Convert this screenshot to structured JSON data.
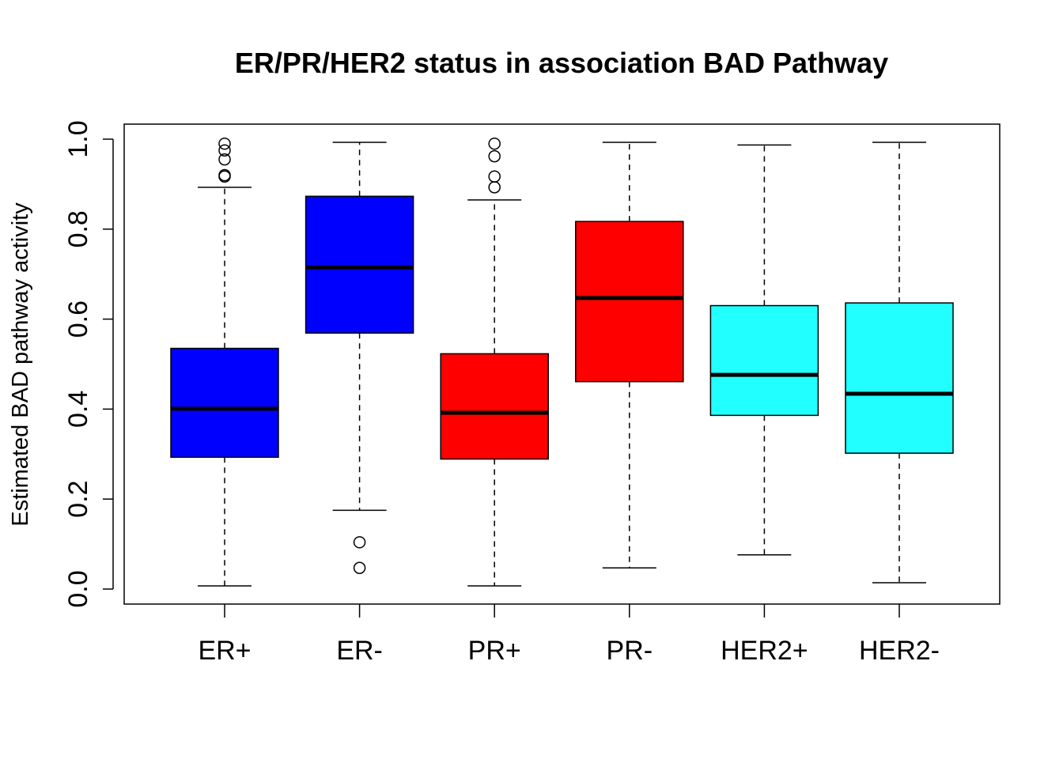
{
  "chart_data": {
    "type": "boxplot",
    "title": "ER/PR/HER2 status in association BAD Pathway",
    "xlabel": "",
    "ylabel": "Estimated BAD pathway activity",
    "ylim": [
      0.0,
      1.0
    ],
    "yticks": [
      "0.0",
      "0.2",
      "0.4",
      "0.6",
      "0.8",
      "1.0"
    ],
    "grid": false,
    "legend": "none",
    "categories": [
      "ER+",
      "ER-",
      "PR+",
      "PR-",
      "HER2+",
      "HER2-"
    ],
    "boxes": [
      {
        "category": "ER+",
        "color": "#0000ff",
        "whisker_low": 0.007,
        "q1": 0.293,
        "median": 0.401,
        "q3": 0.535,
        "whisker_high": 0.893,
        "outliers": [
          0.917,
          0.92,
          0.955,
          0.975,
          0.99
        ]
      },
      {
        "category": "ER-",
        "color": "#0000ff",
        "whisker_low": 0.175,
        "q1": 0.569,
        "median": 0.715,
        "q3": 0.873,
        "whisker_high": 0.993,
        "outliers": [
          0.047,
          0.104
        ]
      },
      {
        "category": "PR+",
        "color": "#ff0000",
        "whisker_low": 0.007,
        "q1": 0.289,
        "median": 0.392,
        "q3": 0.523,
        "whisker_high": 0.865,
        "outliers": [
          0.893,
          0.917,
          0.962,
          0.99
        ]
      },
      {
        "category": "PR-",
        "color": "#ff0000",
        "whisker_low": 0.047,
        "q1": 0.461,
        "median": 0.647,
        "q3": 0.817,
        "whisker_high": 0.993,
        "outliers": []
      },
      {
        "category": "HER2+",
        "color": "#22ffff",
        "whisker_low": 0.076,
        "q1": 0.386,
        "median": 0.476,
        "q3": 0.63,
        "whisker_high": 0.987,
        "outliers": []
      },
      {
        "category": "HER2-",
        "color": "#22ffff",
        "whisker_low": 0.014,
        "q1": 0.302,
        "median": 0.434,
        "q3": 0.636,
        "whisker_high": 0.993,
        "outliers": []
      }
    ]
  }
}
